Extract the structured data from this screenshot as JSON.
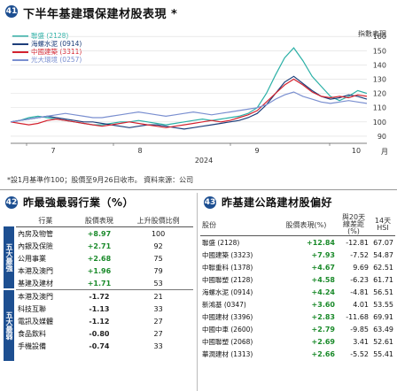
{
  "top": {
    "num": "41",
    "title": "下半年基建環保建材股表現 *",
    "legend": [
      {
        "name": "聯盛 (2128)",
        "color": "#2bb0a6"
      },
      {
        "name": "海螺水泥 (0914)",
        "color": "#1d3e7a"
      },
      {
        "name": "中國建築 (3311)",
        "color": "#d4232f"
      },
      {
        "name": "光大環境 (0257)",
        "color": "#7a8fd0"
      }
    ],
    "y_unit_label": "指數表現",
    "x_unit_label": "月",
    "year_label": "2024",
    "source": "*設1月基準作100；股價至9月26日收市。 資料來源：公司",
    "chart_data": {
      "type": "line",
      "x_ticks": [
        "7",
        "8",
        "9",
        "10"
      ],
      "y_ticks": [
        90,
        100,
        110,
        120,
        130,
        140,
        150,
        160
      ],
      "ylim": [
        85,
        162
      ],
      "series": [
        {
          "name": "聯盛 (2128)",
          "color": "#2bb0a6",
          "values": [
            100,
            101,
            103,
            104,
            103,
            102,
            101,
            100,
            99,
            98,
            98,
            99,
            100,
            100,
            101,
            100,
            99,
            98,
            99,
            100,
            101,
            102,
            101,
            102,
            103,
            104,
            106,
            110,
            120,
            133,
            145,
            152,
            143,
            132,
            125,
            118,
            115,
            118,
            122,
            120
          ]
        },
        {
          "name": "海螺水泥 (0914)",
          "color": "#1d3e7a",
          "values": [
            100,
            101,
            102,
            103,
            104,
            103,
            102,
            101,
            100,
            100,
            99,
            98,
            97,
            96,
            97,
            98,
            98,
            97,
            96,
            95,
            96,
            97,
            98,
            99,
            100,
            101,
            103,
            106,
            112,
            120,
            128,
            132,
            127,
            122,
            118,
            116,
            117,
            119,
            118,
            116
          ]
        },
        {
          "name": "中國建築 (3311)",
          "color": "#d4232f",
          "values": [
            100,
            99,
            98,
            99,
            101,
            102,
            101,
            100,
            99,
            98,
            97,
            98,
            99,
            100,
            99,
            98,
            97,
            96,
            97,
            98,
            99,
            100,
            101,
            100,
            101,
            103,
            105,
            108,
            114,
            120,
            126,
            130,
            126,
            121,
            118,
            117,
            118,
            117,
            119,
            118
          ]
        },
        {
          "name": "光大環境 (0257)",
          "color": "#7a8fd0",
          "values": [
            100,
            101,
            102,
            103,
            104,
            105,
            106,
            105,
            104,
            103,
            103,
            104,
            105,
            106,
            107,
            106,
            105,
            104,
            105,
            106,
            107,
            106,
            105,
            106,
            107,
            108,
            109,
            110,
            112,
            116,
            119,
            121,
            118,
            116,
            114,
            113,
            114,
            115,
            114,
            113
          ]
        }
      ]
    }
  },
  "left": {
    "num": "42",
    "title": "昨最強最弱行業（%）",
    "headers": [
      "行業",
      "股價表現",
      "上升股價比例"
    ],
    "group_strong": "五大最強",
    "group_weak": "五大最弱",
    "rows": [
      {
        "name": "內房及物管",
        "chg": "+8.97",
        "ratio": "100"
      },
      {
        "name": "內銀及保險",
        "chg": "+2.71",
        "ratio": "92"
      },
      {
        "name": "公用事業",
        "chg": "+2.68",
        "ratio": "75"
      },
      {
        "name": "本港及澳門",
        "chg": "+1.96",
        "ratio": "79"
      },
      {
        "name": "基建及建材",
        "chg": "+1.71",
        "ratio": "53"
      },
      {
        "name": "本港及澳門",
        "chg": "-1.72",
        "ratio": "21"
      },
      {
        "name": "科技互聯",
        "chg": "-1.13",
        "ratio": "33"
      },
      {
        "name": "電訊及媒體",
        "chg": "-1.12",
        "ratio": "27"
      },
      {
        "name": "食品飲料",
        "chg": "-0.80",
        "ratio": "27"
      },
      {
        "name": "手機設備",
        "chg": "-0.74",
        "ratio": "33"
      }
    ]
  },
  "right": {
    "num": "43",
    "title": "昨基建公路建材股偏好",
    "headers": [
      "股份",
      "股價表現(%)",
      "與20天線差距(%)",
      "14天 HSI"
    ],
    "rows": [
      {
        "name": "聯盛 (2128)",
        "chg": "+12.84",
        "gap": "-12.81",
        "hsi": "67.07"
      },
      {
        "name": "中國建築 (3323)",
        "chg": "+7.93",
        "gap": "-7.52",
        "hsi": "54.87"
      },
      {
        "name": "中聯重科 (1378)",
        "chg": "+4.67",
        "gap": "9.69",
        "hsi": "62.51"
      },
      {
        "name": "中國聯塑 (2128)",
        "chg": "+4.58",
        "gap": "-6.23",
        "hsi": "61.71"
      },
      {
        "name": "海螺水泥 (0914)",
        "chg": "+4.24",
        "gap": "-4.81",
        "hsi": "56.51"
      },
      {
        "name": "新鴻基 (0347)",
        "chg": "+3.60",
        "gap": "4.01",
        "hsi": "53.55"
      },
      {
        "name": "中國建材 (3396)",
        "chg": "+2.83",
        "gap": "-11.68",
        "hsi": "69.91"
      },
      {
        "name": "中國中車 (2600)",
        "chg": "+2.79",
        "gap": "-9.85",
        "hsi": "63.49"
      },
      {
        "name": "中國聯塑 (2068)",
        "chg": "+2.69",
        "gap": "3.41",
        "hsi": "52.61"
      },
      {
        "name": "華潤建材 (1313)",
        "chg": "+2.66",
        "gap": "-5.52",
        "hsi": "55.41"
      }
    ]
  }
}
